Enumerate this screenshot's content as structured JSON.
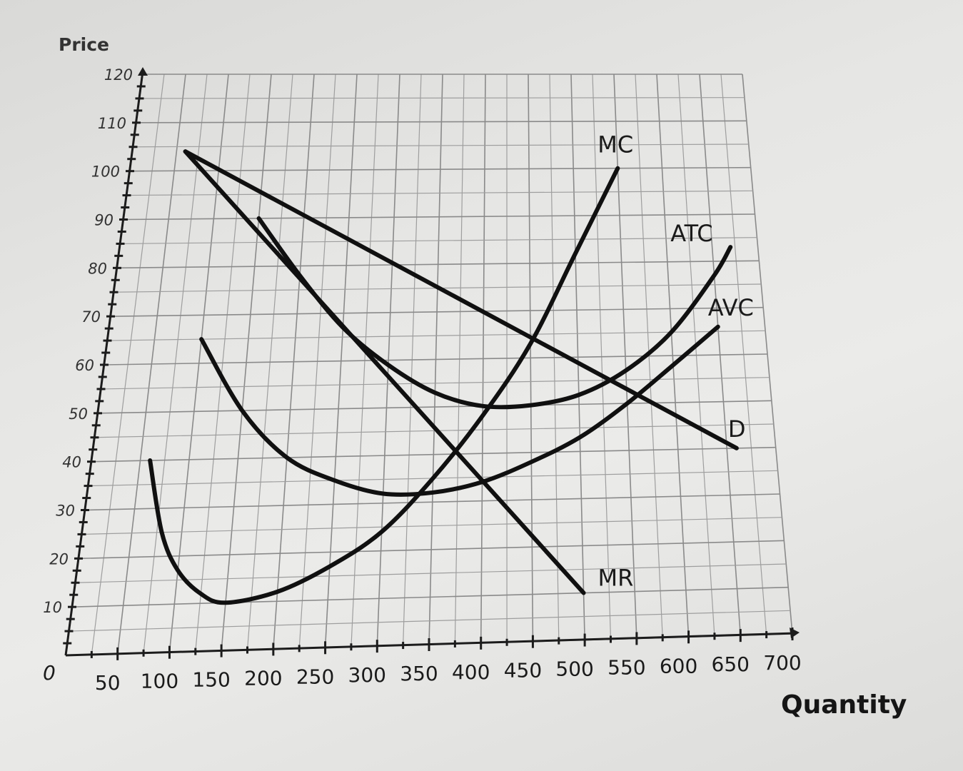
{
  "chart_data": {
    "type": "line",
    "xlabel": "Quantity",
    "ylabel": "Price",
    "origin_label": "0",
    "xlim": [
      0,
      700
    ],
    "ylim": [
      0,
      120
    ],
    "x_ticks": [
      50,
      100,
      150,
      200,
      250,
      300,
      350,
      400,
      450,
      500,
      550,
      600,
      650,
      700
    ],
    "y_ticks": [
      10,
      20,
      30,
      40,
      50,
      60,
      70,
      80,
      90,
      100,
      110,
      120
    ],
    "grid": true,
    "grid_minor_x": 25,
    "grid_minor_y": 5,
    "series": [
      {
        "name": "MC",
        "x": [
          60,
          80,
          100,
          125,
          150,
          200,
          250,
          300,
          350,
          400,
          450,
          500,
          550
        ],
        "y": [
          40,
          25,
          17,
          12,
          10,
          12,
          17,
          24,
          35,
          48,
          63,
          82,
          100
        ]
      },
      {
        "name": "ATC",
        "x": [
          150,
          200,
          250,
          300,
          350,
          400,
          450,
          500,
          550,
          600,
          650,
          670
        ],
        "y": [
          90,
          78,
          67,
          59,
          53,
          50,
          50,
          52,
          57,
          65,
          77,
          83
        ]
      },
      {
        "name": "AVC",
        "x": [
          100,
          150,
          200,
          250,
          300,
          350,
          400,
          450,
          500,
          550,
          600,
          650
        ],
        "y": [
          65,
          50,
          40,
          35,
          32,
          32,
          34,
          38,
          43,
          50,
          58,
          66
        ]
      },
      {
        "name": "D",
        "x": [
          60,
          660
        ],
        "y": [
          104,
          40
        ]
      },
      {
        "name": "MR",
        "x": [
          60,
          500
        ],
        "y": [
          104,
          10
        ]
      }
    ]
  }
}
